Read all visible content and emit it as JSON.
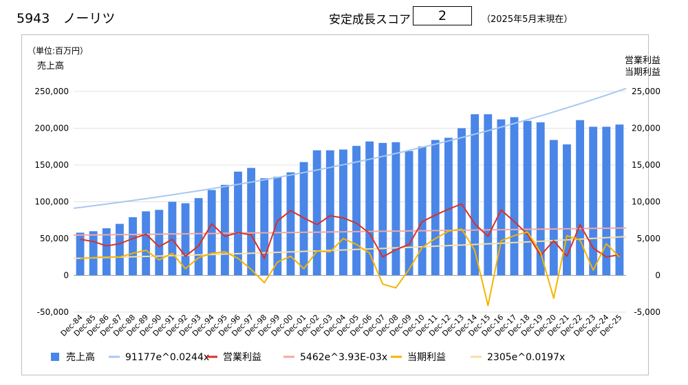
{
  "header": {
    "title": "5943　ノーリツ",
    "score_label": "安定成長スコア",
    "score_value": "2",
    "as_of": "（2025年5月末現在）"
  },
  "chart_data": {
    "type": "bar",
    "unit_note": "（単位:百万円）",
    "ylabel_left": "売上高",
    "ylabel_right": [
      "営業利益",
      "当期利益"
    ],
    "categories": [
      "Dec-84",
      "Dec-85",
      "Dec-86",
      "Dec-87",
      "Dec-88",
      "Dec-89",
      "Dec-90",
      "Dec-91",
      "Dec-92",
      "Dec-93",
      "Dec-94",
      "Dec-95",
      "Dec-96",
      "Dec-97",
      "Dec-98",
      "Dec-99",
      "Dec-00",
      "Dec-01",
      "Dec-02",
      "Dec-03",
      "Dec-04",
      "Dec-05",
      "Dec-06",
      "Dec-07",
      "Dec-08",
      "Dec-09",
      "Dec-10",
      "Dec-11",
      "Dec-12",
      "Dec-13",
      "Dec-14",
      "Dec-15",
      "Dec-16",
      "Dec-17",
      "Dec-18",
      "Dec-19",
      "Dec-20",
      "Dec-21",
      "Dec-22",
      "Dec-23",
      "Dec-24",
      "Dec-25"
    ],
    "y_left": {
      "min": -50000,
      "max": 250000,
      "ticks": [
        "250,000",
        "200,000",
        "150,000",
        "100,000",
        "50,000",
        "0",
        "-50,000"
      ]
    },
    "y_right": {
      "min": -5000,
      "max": 25000,
      "ticks": [
        "25,000",
        "20,000",
        "15,000",
        "10,000",
        "5,000",
        "0",
        "-5,000"
      ]
    },
    "grid": true,
    "legend_position": "bottom",
    "series": [
      {
        "name": "売上高",
        "type": "bar",
        "axis": "left",
        "color": "#4a86e8",
        "values": [
          58000,
          60000,
          64000,
          70000,
          79000,
          87000,
          89000,
          100000,
          98000,
          105000,
          116000,
          123000,
          141000,
          146000,
          132000,
          134000,
          140000,
          154000,
          170000,
          170000,
          171000,
          176000,
          182000,
          180000,
          181000,
          169000,
          175000,
          184000,
          187000,
          200000,
          219000,
          219000,
          212000,
          215000,
          210000,
          208000,
          184000,
          178000,
          211000,
          202000,
          202000,
          205000
        ]
      },
      {
        "name": "営業利益",
        "type": "line",
        "axis": "right",
        "color": "#d93025",
        "values": [
          4900,
          4600,
          4000,
          4300,
          5000,
          5600,
          3900,
          4900,
          2600,
          4000,
          7000,
          5300,
          5800,
          5500,
          2300,
          7400,
          8800,
          7800,
          6900,
          8100,
          7800,
          7100,
          5700,
          2500,
          3500,
          4200,
          7300,
          8200,
          9000,
          9700,
          7000,
          5300,
          8900,
          7300,
          5600,
          2700,
          4700,
          2600,
          6900,
          3700,
          2500,
          2800
        ]
      },
      {
        "name": "当期利益",
        "type": "line",
        "axis": "right",
        "color": "#f4b400",
        "values": [
          2300,
          2400,
          2500,
          2500,
          3000,
          3400,
          2100,
          3000,
          900,
          2400,
          3000,
          3200,
          2300,
          800,
          -1000,
          1800,
          2600,
          900,
          3300,
          3200,
          5000,
          4200,
          3000,
          -1200,
          -1700,
          800,
          3800,
          5000,
          6000,
          6300,
          3400,
          -4100,
          4700,
          5400,
          5900,
          3100,
          -3100,
          5400,
          4800,
          700,
          4300,
          2500
        ]
      },
      {
        "name": "91177e^0.0244x",
        "type": "trend",
        "axis": "left",
        "color": "#a8c7f0",
        "model": {
          "a": 91177,
          "b": 0.0244
        }
      },
      {
        "name": "5462e^3.93E-03x",
        "type": "trend",
        "axis": "right",
        "color": "#f4a9a2",
        "model": {
          "a": 5462,
          "b": 0.00393
        }
      },
      {
        "name": "2305e^0.0197x",
        "type": "trend",
        "axis": "right",
        "color": "#f7dfa0",
        "model": {
          "a": 2305,
          "b": 0.0197
        }
      }
    ],
    "legend": [
      "売上高",
      "91177e^0.0244x",
      "営業利益",
      "5462e^3.93E-03x",
      "当期利益",
      "2305e^0.0197x"
    ]
  }
}
